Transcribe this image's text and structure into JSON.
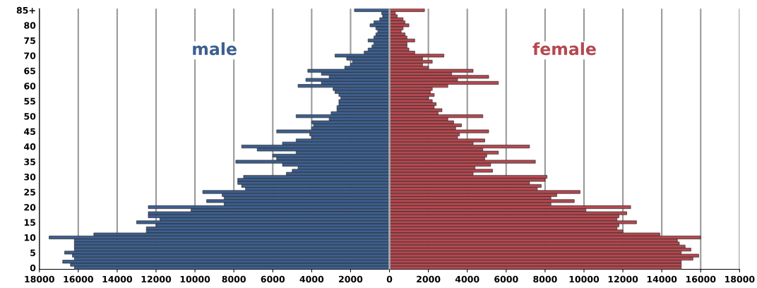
{
  "chart_data": {
    "type": "bar",
    "orientation": "horizontal",
    "categories": [
      "85+",
      null,
      null,
      null,
      null,
      "80",
      null,
      null,
      null,
      null,
      "75",
      null,
      null,
      null,
      null,
      "70",
      null,
      null,
      null,
      null,
      "65",
      null,
      null,
      null,
      null,
      "60",
      null,
      null,
      null,
      null,
      "55",
      null,
      null,
      null,
      null,
      "50",
      null,
      null,
      null,
      null,
      "45",
      null,
      null,
      null,
      null,
      "40",
      null,
      null,
      null,
      null,
      "35",
      null,
      null,
      null,
      null,
      "30",
      null,
      null,
      null,
      null,
      "25",
      null,
      null,
      null,
      null,
      "20",
      null,
      null,
      null,
      null,
      "15",
      null,
      null,
      null,
      null,
      "10",
      null,
      null,
      null,
      null,
      "5",
      null,
      null,
      null,
      null,
      "0"
    ],
    "series": [
      {
        "name": "male",
        "color": "#3d5f8f",
        "values": [
          -1800,
          -400,
          -350,
          -500,
          -800,
          -1000,
          -700,
          -600,
          -700,
          -800,
          -1100,
          -800,
          -900,
          -1100,
          -1300,
          -2800,
          -2200,
          -1900,
          -2000,
          -2300,
          -4200,
          -3500,
          -3100,
          -4300,
          -3500,
          -4700,
          -2900,
          -2800,
          -2600,
          -2500,
          -2600,
          -2600,
          -2700,
          -2700,
          -3000,
          -4800,
          -3100,
          -4000,
          -3900,
          -4000,
          -5800,
          -4100,
          -4000,
          -4800,
          -5500,
          -7600,
          -6800,
          -4800,
          -6000,
          -5800,
          -7900,
          -5500,
          -4700,
          -5000,
          -5300,
          -7500,
          -7800,
          -7800,
          -7600,
          -7400,
          -9600,
          -8600,
          -8500,
          -9400,
          -8500,
          -12400,
          -10200,
          -12400,
          -12400,
          -11800,
          -13000,
          -12000,
          -12500,
          -12500,
          -15200,
          -17500,
          -16200,
          -16200,
          -16200,
          -16200,
          -16700,
          -16300,
          -16200,
          -16800,
          -16400,
          -16200
        ]
      },
      {
        "name": "female",
        "color": "#b5484f",
        "values": [
          1800,
          300,
          400,
          700,
          800,
          1000,
          700,
          600,
          800,
          900,
          1300,
          900,
          900,
          1000,
          1300,
          2800,
          1700,
          2200,
          1700,
          2000,
          4300,
          3200,
          5100,
          3500,
          5600,
          3000,
          2200,
          2100,
          2300,
          2000,
          2200,
          2400,
          2300,
          2700,
          2500,
          4800,
          3000,
          3300,
          3700,
          3400,
          5100,
          3600,
          3500,
          4900,
          4300,
          7200,
          4800,
          5600,
          5000,
          4900,
          7500,
          5200,
          4400,
          5300,
          4300,
          8100,
          8000,
          7200,
          7800,
          7600,
          9800,
          8600,
          8300,
          9500,
          8300,
          12400,
          10100,
          12200,
          11800,
          11700,
          12700,
          11800,
          11700,
          12000,
          13900,
          16000,
          14800,
          14900,
          15200,
          15500,
          15000,
          15900,
          15600,
          15000,
          15000,
          15000
        ]
      }
    ],
    "xlim": [
      -18000,
      18000
    ],
    "xticks": [
      {
        "value": -18000,
        "label": "18000"
      },
      {
        "value": -16000,
        "label": "16000"
      },
      {
        "value": -14000,
        "label": "14000"
      },
      {
        "value": -12000,
        "label": "12000"
      },
      {
        "value": -10000,
        "label": "10000"
      },
      {
        "value": -8000,
        "label": "8000"
      },
      {
        "value": -6000,
        "label": "6000"
      },
      {
        "value": -4000,
        "label": "4000"
      },
      {
        "value": -2000,
        "label": "2000"
      },
      0,
      2000,
      4000,
      6000,
      8000,
      10000,
      12000,
      14000,
      16000,
      18000
    ],
    "stacked": true,
    "grid": "x",
    "legend": false
  }
}
